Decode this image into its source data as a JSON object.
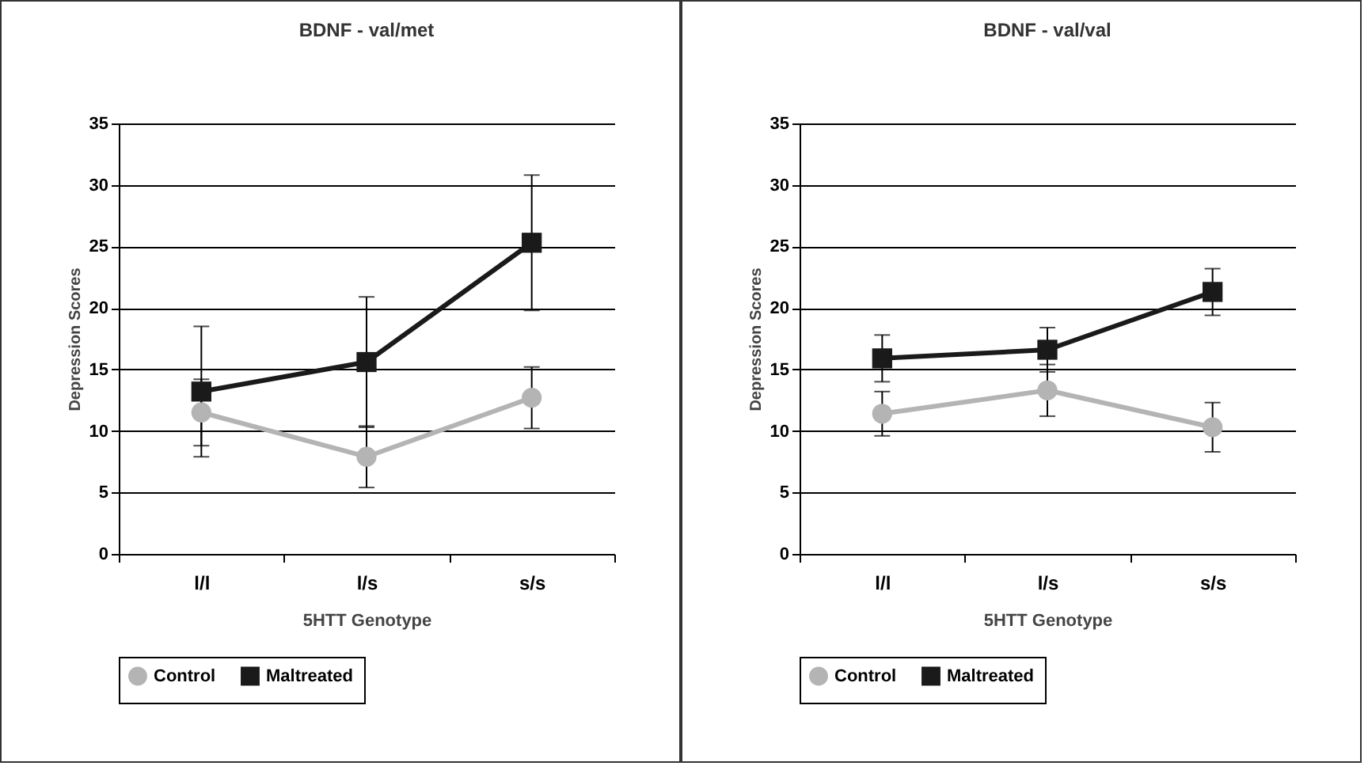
{
  "chart_data": [
    {
      "type": "line",
      "title": "BDNF - val/met",
      "xlabel": "5HTT Genotype",
      "ylabel": "Depression Scores",
      "categories": [
        "l/l",
        "l/s",
        "s/s"
      ],
      "ylim": [
        0,
        35
      ],
      "yticks": [
        0,
        5,
        10,
        15,
        20,
        25,
        30,
        35
      ],
      "grid": "y",
      "legend": "bottom",
      "series": [
        {
          "name": "Control",
          "color": "#b4b4b4",
          "marker": "circle",
          "values": [
            11.5,
            7.9,
            12.7
          ],
          "errors": [
            2.7,
            2.5,
            2.5
          ]
        },
        {
          "name": "Maltreated",
          "color": "#1a1a1a",
          "marker": "square",
          "values": [
            13.2,
            15.6,
            25.3
          ],
          "errors": [
            5.3,
            5.3,
            5.5
          ]
        }
      ]
    },
    {
      "type": "line",
      "title": "BDNF - val/val",
      "xlabel": "5HTT Genotype",
      "ylabel": "Depression Scores",
      "categories": [
        "l/l",
        "l/s",
        "s/s"
      ],
      "ylim": [
        0,
        35
      ],
      "yticks": [
        0,
        5,
        10,
        15,
        20,
        25,
        30,
        35
      ],
      "grid": "y",
      "legend": "bottom",
      "series": [
        {
          "name": "Control",
          "color": "#b4b4b4",
          "marker": "circle",
          "values": [
            11.4,
            13.3,
            10.3
          ],
          "errors": [
            1.8,
            2.1,
            2.0
          ]
        },
        {
          "name": "Maltreated",
          "color": "#1a1a1a",
          "marker": "square",
          "values": [
            15.9,
            16.6,
            21.3
          ],
          "errors": [
            1.9,
            1.8,
            1.9
          ]
        }
      ]
    }
  ]
}
